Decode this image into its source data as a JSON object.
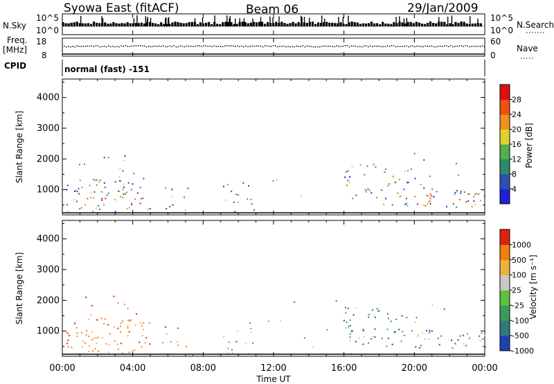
{
  "header": {
    "station": "Syowa East (fitACF)",
    "beam": "Beam 06",
    "date": "29/Jan/2009"
  },
  "top_panels": {
    "nsky_label": "N.Sky",
    "nsky_ticks": [
      "10^5",
      "10^0"
    ],
    "nsearch_label": "N.Search",
    "nsearch_ticks": [
      "10^5",
      "10^0"
    ],
    "freq_label_1": "Freq.",
    "freq_label_2": "[MHz]",
    "freq_ticks": [
      "18",
      "8"
    ],
    "nave_label": "Nave",
    "nave_ticks": [
      "60",
      "0"
    ],
    "cpid_label": "CPID",
    "cpid_value": "normal (fast) -151"
  },
  "chart_data": [
    {
      "type": "heatmap",
      "name": "power-panel",
      "ylabel": "Slant Range [km]",
      "ylim": [
        180,
        4600
      ],
      "yticks": [
        "4000",
        "3000",
        "2000",
        "1000"
      ],
      "ytick_values": [
        4000,
        3000,
        2000,
        1000
      ],
      "xlabel": "",
      "xlim_hours": [
        0,
        24
      ],
      "colorbar": {
        "label": "Power [dB]",
        "ticks": [
          "28",
          "24",
          "20",
          "16",
          "12",
          "8",
          "4"
        ],
        "colors": [
          "#2020d8",
          "#3050b0",
          "#2f8a6a",
          "#50b050",
          "#e0d030",
          "#f09020",
          "#f05010",
          "#e01010"
        ]
      }
    },
    {
      "type": "heatmap",
      "name": "velocity-panel",
      "ylabel": "Slant Range [km]",
      "ylim": [
        180,
        4600
      ],
      "yticks": [
        "4000",
        "3000",
        "2000",
        "1000"
      ],
      "ytick_values": [
        4000,
        3000,
        2000,
        1000
      ],
      "xlabel": "Time UT",
      "xlim_hours": [
        0,
        24
      ],
      "xticks": [
        "00:00",
        "04:00",
        "08:00",
        "12:00",
        "16:00",
        "20:00",
        "00:00"
      ],
      "xtick_values": [
        0,
        4,
        8,
        12,
        16,
        20,
        24
      ],
      "colorbar": {
        "label": "Velocity [m s⁻¹]",
        "ticks": [
          "1000",
          "500",
          "100",
          "25",
          "-25",
          "-100",
          "-500",
          "-1000"
        ],
        "colors": [
          "#2040b0",
          "#2f7a7a",
          "#3c9a5a",
          "#60c040",
          "#c8c8c8",
          "#f0b040",
          "#f08010",
          "#e02010"
        ]
      }
    }
  ]
}
